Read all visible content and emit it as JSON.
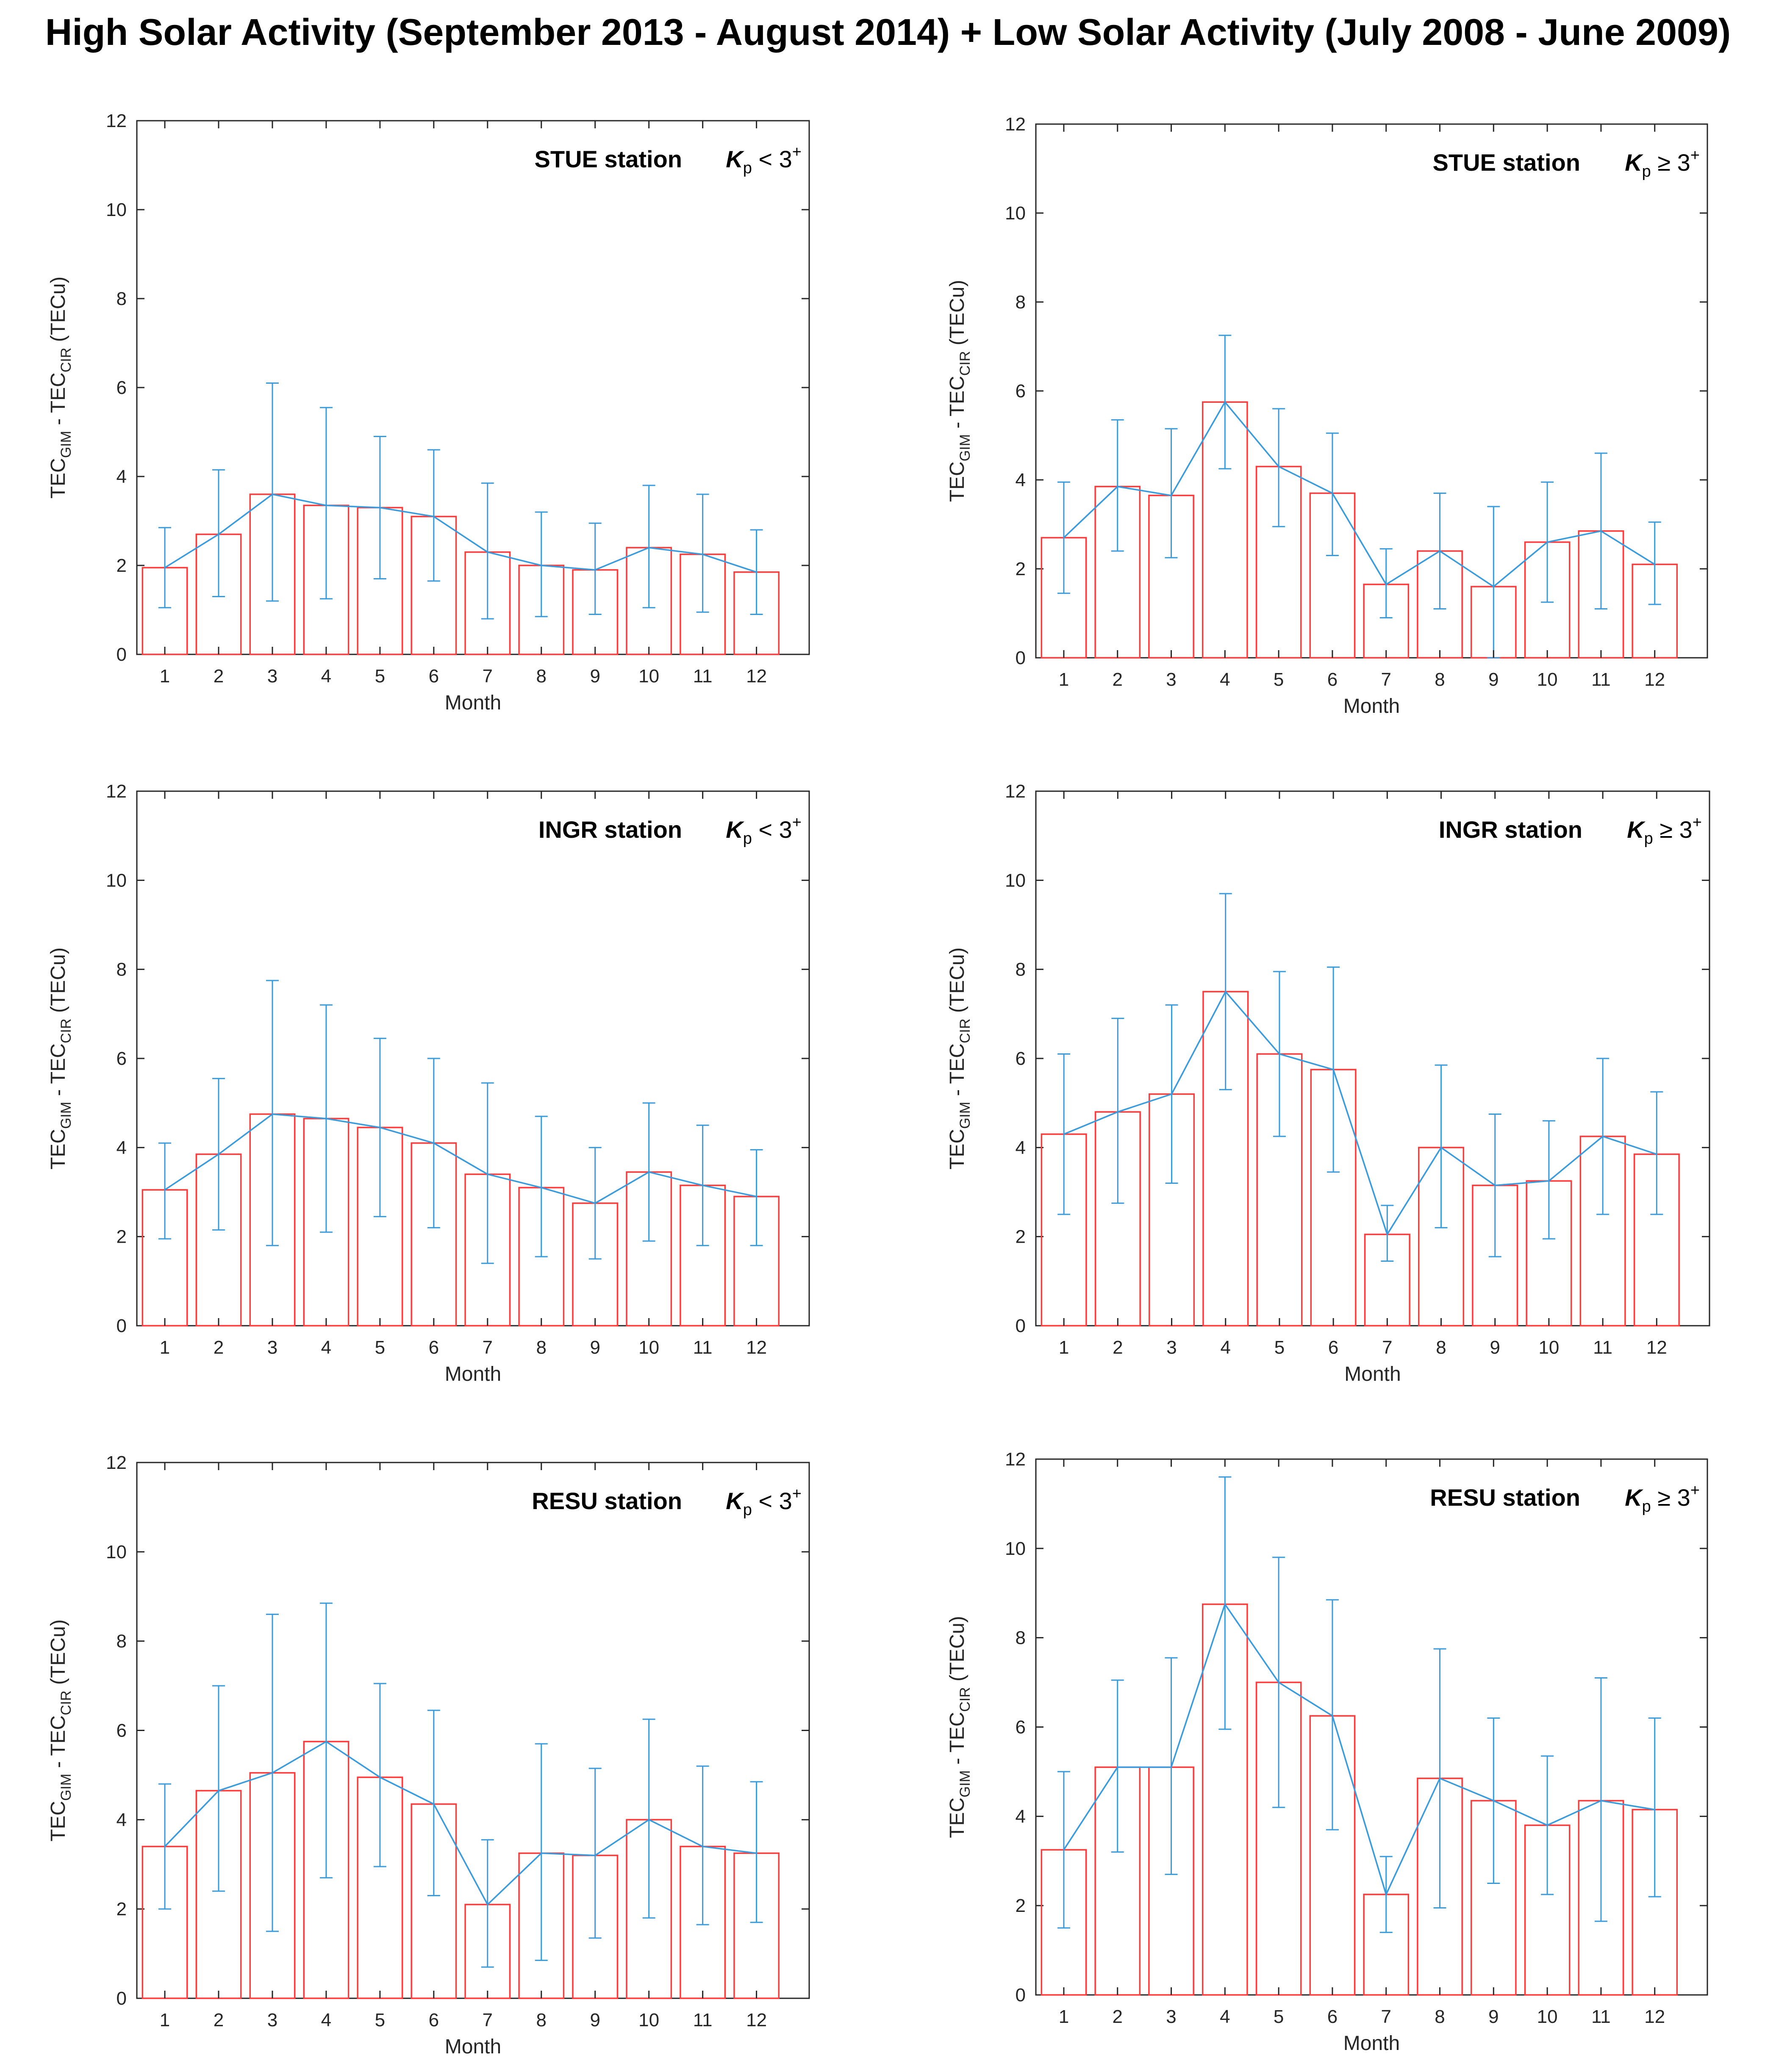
{
  "title": "High Solar Activity (September 2013 - August 2014) + Low Solar Activity (July 2008 - June 2009)",
  "colors": {
    "bar_edge": "#ff3b3b",
    "mean_line": "#3a9bdc",
    "error_bar": "#3a9bdc",
    "axis": "#262626",
    "text": "#000000"
  },
  "chart_data": [
    {
      "type": "bar",
      "station": "STUE station",
      "kp_symbol": "K",
      "kp_sub": "p",
      "kp_rel": "<",
      "kp_value": "3",
      "kp_sup": "+",
      "xlabel": "Month",
      "ylabel_parts": [
        "TEC",
        "GIM",
        " - TEC",
        "CIR",
        " (TECu)"
      ],
      "categories": [
        "1",
        "2",
        "3",
        "4",
        "5",
        "6",
        "7",
        "8",
        "9",
        "10",
        "11",
        "12"
      ],
      "values": [
        1.95,
        2.7,
        3.6,
        3.35,
        3.3,
        3.1,
        2.3,
        2.0,
        1.9,
        2.4,
        2.25,
        1.85
      ],
      "err_low": [
        1.05,
        1.3,
        1.2,
        1.25,
        1.7,
        1.65,
        0.8,
        0.85,
        0.9,
        1.05,
        0.95,
        0.9
      ],
      "err_high": [
        2.85,
        4.15,
        6.1,
        5.55,
        4.9,
        4.6,
        3.85,
        3.2,
        2.95,
        3.8,
        3.6,
        2.8
      ],
      "ylim": [
        0,
        12
      ],
      "yticks": [
        "0",
        "2",
        "4",
        "6",
        "8",
        "10",
        "12"
      ]
    },
    {
      "type": "bar",
      "station": "STUE station",
      "kp_symbol": "K",
      "kp_sub": "p",
      "kp_rel": "≥",
      "kp_value": "3",
      "kp_sup": "+",
      "xlabel": "Month",
      "ylabel_parts": [
        "TEC",
        "GIM",
        " - TEC",
        "CIR",
        " (TECu)"
      ],
      "categories": [
        "1",
        "2",
        "3",
        "4",
        "5",
        "6",
        "7",
        "8",
        "9",
        "10",
        "11",
        "12"
      ],
      "values": [
        2.7,
        3.85,
        3.65,
        5.75,
        4.3,
        3.7,
        1.65,
        2.4,
        1.6,
        2.6,
        2.85,
        2.1
      ],
      "err_low": [
        1.45,
        2.4,
        2.25,
        4.25,
        2.95,
        2.3,
        0.9,
        1.1,
        0.0,
        1.25,
        1.1,
        1.2
      ],
      "err_high": [
        3.95,
        5.35,
        5.15,
        7.25,
        5.6,
        5.05,
        2.45,
        3.7,
        3.4,
        3.95,
        4.6,
        3.05
      ],
      "ylim": [
        0,
        12
      ],
      "yticks": [
        "0",
        "2",
        "4",
        "6",
        "8",
        "10",
        "12"
      ]
    },
    {
      "type": "bar",
      "station": "INGR station",
      "kp_symbol": "K",
      "kp_sub": "p",
      "kp_rel": "<",
      "kp_value": "3",
      "kp_sup": "+",
      "xlabel": "Month",
      "ylabel_parts": [
        "TEC",
        "GIM",
        " - TEC",
        "CIR",
        " (TECu)"
      ],
      "categories": [
        "1",
        "2",
        "3",
        "4",
        "5",
        "6",
        "7",
        "8",
        "9",
        "10",
        "11",
        "12"
      ],
      "values": [
        3.05,
        3.85,
        4.75,
        4.65,
        4.45,
        4.1,
        3.4,
        3.1,
        2.75,
        3.45,
        3.15,
        2.9
      ],
      "err_low": [
        1.95,
        2.15,
        1.8,
        2.1,
        2.45,
        2.2,
        1.4,
        1.55,
        1.5,
        1.9,
        1.8,
        1.8
      ],
      "err_high": [
        4.1,
        5.55,
        7.75,
        7.2,
        6.45,
        6.0,
        5.45,
        4.7,
        4.0,
        5.0,
        4.5,
        3.95
      ],
      "ylim": [
        0,
        12
      ],
      "yticks": [
        "0",
        "2",
        "4",
        "6",
        "8",
        "10",
        "12"
      ]
    },
    {
      "type": "bar",
      "station": "INGR station",
      "kp_symbol": "K",
      "kp_sub": "p",
      "kp_rel": "≥",
      "kp_value": "3",
      "kp_sup": "+",
      "xlabel": "Month",
      "ylabel_parts": [
        "TEC",
        "GIM",
        " - TEC",
        "CIR",
        " (TECu)"
      ],
      "categories": [
        "1",
        "2",
        "3",
        "4",
        "5",
        "6",
        "7",
        "8",
        "9",
        "10",
        "11",
        "12"
      ],
      "values": [
        4.3,
        4.8,
        5.2,
        7.5,
        6.1,
        5.75,
        2.05,
        4.0,
        3.15,
        3.25,
        4.25,
        3.85
      ],
      "err_low": [
        2.5,
        2.75,
        3.2,
        5.3,
        4.25,
        3.45,
        1.45,
        2.2,
        1.55,
        1.95,
        2.5,
        2.5
      ],
      "err_high": [
        6.1,
        6.9,
        7.2,
        9.7,
        7.95,
        8.05,
        2.7,
        5.85,
        4.75,
        4.6,
        6.0,
        5.25
      ],
      "ylim": [
        0,
        12
      ],
      "yticks": [
        "0",
        "2",
        "4",
        "6",
        "8",
        "10",
        "12"
      ]
    },
    {
      "type": "bar",
      "station": "RESU station",
      "kp_symbol": "K",
      "kp_sub": "p",
      "kp_rel": "<",
      "kp_value": "3",
      "kp_sup": "+",
      "xlabel": "Month",
      "ylabel_parts": [
        "TEC",
        "GIM",
        " - TEC",
        "CIR",
        " (TECu)"
      ],
      "categories": [
        "1",
        "2",
        "3",
        "4",
        "5",
        "6",
        "7",
        "8",
        "9",
        "10",
        "11",
        "12"
      ],
      "values": [
        3.4,
        4.65,
        5.05,
        5.75,
        4.95,
        4.35,
        2.1,
        3.25,
        3.2,
        4.0,
        3.4,
        3.25
      ],
      "err_low": [
        2.0,
        2.4,
        1.5,
        2.7,
        2.95,
        2.3,
        0.7,
        0.85,
        1.35,
        1.8,
        1.65,
        1.7
      ],
      "err_high": [
        4.8,
        7.0,
        8.6,
        8.85,
        7.05,
        6.45,
        3.55,
        5.7,
        5.15,
        6.25,
        5.2,
        4.85
      ],
      "ylim": [
        0,
        12
      ],
      "yticks": [
        "0",
        "2",
        "4",
        "6",
        "8",
        "10",
        "12"
      ]
    },
    {
      "type": "bar",
      "station": "RESU station",
      "kp_symbol": "K",
      "kp_sub": "p",
      "kp_rel": "≥",
      "kp_value": "3",
      "kp_sup": "+",
      "xlabel": "Month",
      "ylabel_parts": [
        "TEC",
        "GIM",
        " - TEC",
        "CIR",
        " (TECu)"
      ],
      "categories": [
        "1",
        "2",
        "3",
        "4",
        "5",
        "6",
        "7",
        "8",
        "9",
        "10",
        "11",
        "12"
      ],
      "values": [
        3.25,
        5.1,
        5.1,
        8.75,
        7.0,
        6.25,
        2.25,
        4.85,
        4.35,
        3.8,
        4.35,
        4.15
      ],
      "err_low": [
        1.5,
        3.2,
        2.7,
        5.95,
        4.2,
        3.7,
        1.4,
        1.95,
        2.5,
        2.25,
        1.65,
        2.2
      ],
      "err_high": [
        5.0,
        7.05,
        7.55,
        11.6,
        9.8,
        8.85,
        3.1,
        7.75,
        6.2,
        5.35,
        7.1,
        6.2
      ],
      "ylim": [
        0,
        12
      ],
      "yticks": [
        "0",
        "2",
        "4",
        "6",
        "8",
        "10",
        "12"
      ]
    }
  ]
}
